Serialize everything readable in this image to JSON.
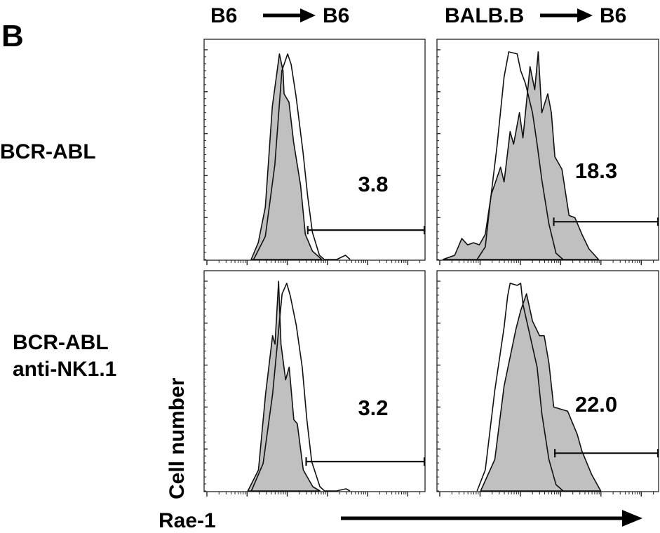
{
  "figure": {
    "panel_letter": "B",
    "column_headers": [
      {
        "left": "B6",
        "right": "B6"
      },
      {
        "left": "BALB.B",
        "right": "B6"
      }
    ],
    "row_labels": [
      {
        "line1": "BCR-ABL",
        "line2": ""
      },
      {
        "line1": "BCR-ABL",
        "line2": "anti-NK1.1"
      }
    ],
    "ylabel": "Cell number",
    "xlabel": "Rae-1"
  },
  "colors": {
    "filled": "#c0c0c0",
    "line": "#111111"
  },
  "chart_data": [
    {
      "type": "area",
      "row": 0,
      "col": 0,
      "xscale": "log",
      "grid": false,
      "xlim": [
        0,
        1000
      ],
      "ylim": [
        0,
        105
      ],
      "gate": {
        "start": 469,
        "end": 1000,
        "level": 14,
        "label": "3.8"
      },
      "series": [
        {
          "style": "filled",
          "points": [
            [
              213,
              0
            ],
            [
              245,
              8
            ],
            [
              277,
              25
            ],
            [
              309,
              73
            ],
            [
              341,
              98
            ],
            [
              357,
              90
            ],
            [
              362,
              79
            ],
            [
              384,
              75
            ],
            [
              405,
              56
            ],
            [
              437,
              35
            ],
            [
              458,
              12
            ],
            [
              490,
              4
            ],
            [
              533,
              0
            ]
          ]
        },
        {
          "style": "open",
          "points": [
            [
              224,
              0
            ],
            [
              277,
              11
            ],
            [
              320,
              45
            ],
            [
              352,
              90
            ],
            [
              378,
              98
            ],
            [
              394,
              93
            ],
            [
              416,
              78
            ],
            [
              448,
              51
            ],
            [
              469,
              30
            ],
            [
              490,
              13
            ],
            [
              522,
              2
            ],
            [
              544,
              0
            ],
            [
              600,
              0
            ],
            [
              640,
              2
            ],
            [
              661,
              0
            ]
          ]
        }
      ]
    },
    {
      "type": "area",
      "row": 0,
      "col": 1,
      "xscale": "log",
      "grid": false,
      "xlim": [
        0,
        1000
      ],
      "ylim": [
        0,
        105
      ],
      "gate": {
        "start": 527,
        "end": 1000,
        "level": 18,
        "label": "18.3"
      },
      "series": [
        {
          "style": "filled",
          "points": [
            [
              27,
              0
            ],
            [
              80,
              2
            ],
            [
              112,
              10
            ],
            [
              138,
              7
            ],
            [
              165,
              8
            ],
            [
              191,
              7
            ],
            [
              218,
              12
            ],
            [
              245,
              31
            ],
            [
              271,
              39
            ],
            [
              287,
              44
            ],
            [
              303,
              37
            ],
            [
              330,
              61
            ],
            [
              346,
              55
            ],
            [
              372,
              70
            ],
            [
              388,
              58
            ],
            [
              420,
              92
            ],
            [
              441,
              81
            ],
            [
              457,
              99
            ],
            [
              473,
              70
            ],
            [
              500,
              79
            ],
            [
              516,
              70
            ],
            [
              532,
              49
            ],
            [
              564,
              43
            ],
            [
              596,
              21
            ],
            [
              622,
              20
            ],
            [
              654,
              12
            ],
            [
              686,
              5
            ],
            [
              729,
              0
            ]
          ]
        },
        {
          "style": "open",
          "points": [
            [
              181,
              0
            ],
            [
              218,
              6
            ],
            [
              239,
              26
            ],
            [
              271,
              54
            ],
            [
              303,
              87
            ],
            [
              324,
              99
            ],
            [
              362,
              98
            ],
            [
              378,
              90
            ],
            [
              399,
              84
            ],
            [
              431,
              70
            ],
            [
              452,
              55
            ],
            [
              473,
              38
            ],
            [
              505,
              17
            ],
            [
              537,
              3
            ],
            [
              569,
              0
            ]
          ]
        }
      ]
    },
    {
      "type": "area",
      "row": 1,
      "col": 0,
      "xscale": "log",
      "grid": false,
      "xlim": [
        0,
        1000
      ],
      "ylim": [
        0,
        105
      ],
      "gate": {
        "start": 462,
        "end": 1000,
        "level": 14,
        "label": "3.2"
      },
      "series": [
        {
          "style": "filled",
          "points": [
            [
              198,
              0
            ],
            [
              246,
              10
            ],
            [
              278,
              46
            ],
            [
              310,
              74
            ],
            [
              321,
              70
            ],
            [
              337,
              100
            ],
            [
              348,
              70
            ],
            [
              369,
              53
            ],
            [
              385,
              59
            ],
            [
              406,
              34
            ],
            [
              422,
              32
            ],
            [
              449,
              10
            ],
            [
              492,
              2
            ],
            [
              524,
              0
            ]
          ]
        },
        {
          "style": "open",
          "points": [
            [
              214,
              0
            ],
            [
              267,
              13
            ],
            [
              310,
              46
            ],
            [
              353,
              94
            ],
            [
              374,
              99
            ],
            [
              390,
              93
            ],
            [
              417,
              79
            ],
            [
              444,
              59
            ],
            [
              465,
              34
            ],
            [
              487,
              14
            ],
            [
              524,
              2
            ],
            [
              545,
              0
            ],
            [
              600,
              0
            ],
            [
              642,
              1
            ],
            [
              660,
              0
            ]
          ]
        }
      ]
    },
    {
      "type": "area",
      "row": 1,
      "col": 1,
      "xscale": "log",
      "grid": false,
      "xlim": [
        0,
        1000
      ],
      "ylim": [
        0,
        105
      ],
      "gate": {
        "start": 532,
        "end": 1000,
        "level": 18,
        "label": "22.0"
      },
      "series": [
        {
          "style": "filled",
          "points": [
            [
              197,
              0
            ],
            [
              261,
              15
            ],
            [
              303,
              50
            ],
            [
              356,
              77
            ],
            [
              378,
              86
            ],
            [
              404,
              94
            ],
            [
              431,
              81
            ],
            [
              463,
              74
            ],
            [
              484,
              74
            ],
            [
              505,
              61
            ],
            [
              527,
              40
            ],
            [
              590,
              38
            ],
            [
              633,
              27
            ],
            [
              654,
              19
            ],
            [
              697,
              8
            ],
            [
              739,
              0
            ]
          ]
        },
        {
          "style": "open",
          "points": [
            [
              181,
              0
            ],
            [
              218,
              10
            ],
            [
              261,
              48
            ],
            [
              303,
              78
            ],
            [
              319,
              93
            ],
            [
              330,
              99
            ],
            [
              362,
              98
            ],
            [
              378,
              99
            ],
            [
              388,
              89
            ],
            [
              420,
              74
            ],
            [
              452,
              59
            ],
            [
              473,
              37
            ],
            [
              505,
              15
            ],
            [
              537,
              3
            ],
            [
              569,
              0
            ]
          ]
        }
      ]
    }
  ]
}
